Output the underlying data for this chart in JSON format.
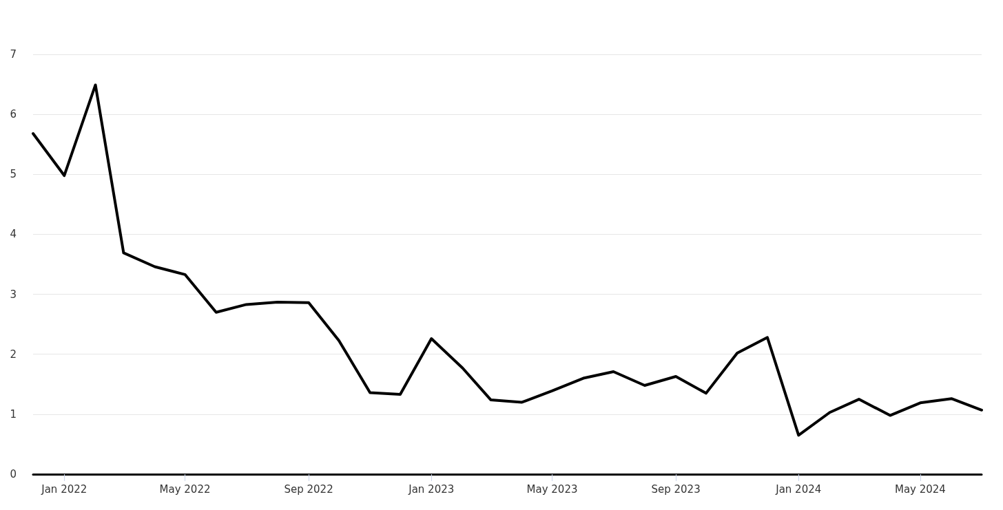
{
  "chart_data": {
    "type": "line",
    "x": [
      "2021-12",
      "2022-01",
      "2022-02",
      "2022-03",
      "2022-04",
      "2022-05",
      "2022-06",
      "2022-07",
      "2022-08",
      "2022-09",
      "2022-10",
      "2022-11",
      "2022-12",
      "2023-01",
      "2023-02",
      "2023-03",
      "2023-04",
      "2023-05",
      "2023-06",
      "2023-07",
      "2023-08",
      "2023-09",
      "2023-10",
      "2023-11",
      "2023-12",
      "2024-01",
      "2024-02",
      "2024-03",
      "2024-04",
      "2024-05",
      "2024-06",
      "2024-07"
    ],
    "values": [
      5.68,
      4.98,
      6.49,
      3.69,
      3.46,
      3.33,
      2.7,
      2.83,
      2.87,
      2.86,
      2.23,
      1.36,
      1.33,
      2.26,
      1.77,
      1.24,
      1.2,
      1.39,
      1.6,
      1.71,
      1.48,
      1.63,
      1.35,
      2.02,
      2.28,
      0.65,
      1.03,
      1.25,
      0.98,
      1.19,
      1.26,
      1.07
    ],
    "color": "#000000",
    "xlim": [
      "2021-12",
      "2024-07"
    ],
    "xticks": [
      {
        "value": "2022-01",
        "label": "Jan 2022"
      },
      {
        "value": "2022-05",
        "label": "May 2022"
      },
      {
        "value": "2022-09",
        "label": "Sep 2022"
      },
      {
        "value": "2023-01",
        "label": "Jan 2023"
      },
      {
        "value": "2023-05",
        "label": "May 2023"
      },
      {
        "value": "2023-09",
        "label": "Sep 2023"
      },
      {
        "value": "2024-01",
        "label": "Jan 2024"
      },
      {
        "value": "2024-05",
        "label": "May 2024"
      }
    ],
    "ylim": [
      0,
      7
    ],
    "yticks": [
      0,
      1,
      2,
      3,
      4,
      5,
      6,
      7
    ],
    "grid": "y",
    "marker": "none",
    "line_style": "solid"
  }
}
